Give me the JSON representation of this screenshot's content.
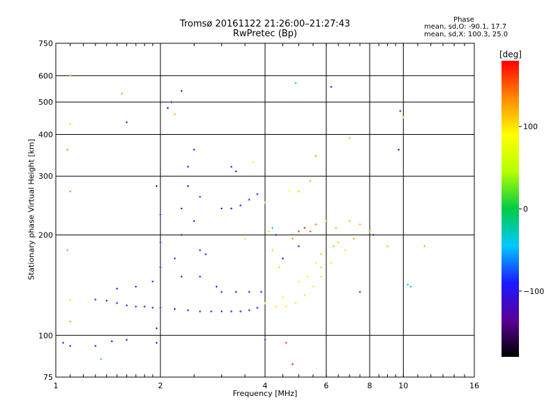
{
  "chart_data": {
    "type": "scatter",
    "title": "Tromsø 20161122 21:26:00–21:27:43",
    "subtitle": "RwPretec (Bp)",
    "xlabel": "Frequency [MHz]",
    "ylabel": "Stationary phase Virtual Height [km]",
    "x_scale": "log",
    "y_scale": "log",
    "xlim": [
      1,
      16
    ],
    "ylim": [
      75,
      750
    ],
    "x_ticks": [
      1,
      2,
      4,
      6,
      8,
      10,
      16
    ],
    "y_ticks": [
      75,
      100,
      200,
      300,
      400,
      500,
      600,
      750
    ],
    "grid": true,
    "phase_legend": {
      "title": "Phase",
      "o_line": "mean, sd,O: -90.1, 17.7",
      "x_line": "mean, sd,X: 100.3, 25.0"
    },
    "colorbar": {
      "unit": "[deg]",
      "range": [
        -180,
        180
      ],
      "tick_values": [
        100,
        0,
        -100
      ],
      "tick_labels": [
        "100",
        "0",
        "−100"
      ],
      "colormap": [
        "#000000",
        "#5a0099",
        "#1a1aff",
        "#00c8ff",
        "#00cc44",
        "#b4ff00",
        "#ffff00",
        "#ff8800",
        "#ff0000"
      ]
    },
    "series": [
      {
        "values": [
          {
            "x": 1.05,
            "y": 95,
            "phase": -100
          },
          {
            "x": 1.1,
            "y": 93,
            "phase": -100
          },
          {
            "x": 1.3,
            "y": 93,
            "phase": -100
          },
          {
            "x": 1.45,
            "y": 96,
            "phase": -100
          },
          {
            "x": 1.6,
            "y": 97,
            "phase": -100
          },
          {
            "x": 1.95,
            "y": 105,
            "phase": -100
          },
          {
            "x": 1.3,
            "y": 128,
            "phase": -95
          },
          {
            "x": 1.4,
            "y": 127,
            "phase": -95
          },
          {
            "x": 1.5,
            "y": 125,
            "phase": -95
          },
          {
            "x": 1.6,
            "y": 123,
            "phase": -95
          },
          {
            "x": 1.7,
            "y": 122,
            "phase": -95
          },
          {
            "x": 1.8,
            "y": 122,
            "phase": -95
          },
          {
            "x": 1.9,
            "y": 121,
            "phase": -95
          },
          {
            "x": 2.0,
            "y": 121,
            "phase": -95
          },
          {
            "x": 2.2,
            "y": 120,
            "phase": -95
          },
          {
            "x": 2.4,
            "y": 119,
            "phase": -95
          },
          {
            "x": 2.6,
            "y": 118,
            "phase": -95
          },
          {
            "x": 2.8,
            "y": 118,
            "phase": -95
          },
          {
            "x": 3.0,
            "y": 118,
            "phase": -95
          },
          {
            "x": 3.2,
            "y": 118,
            "phase": -95
          },
          {
            "x": 3.4,
            "y": 118,
            "phase": -95
          },
          {
            "x": 3.6,
            "y": 119,
            "phase": -95
          },
          {
            "x": 3.8,
            "y": 121,
            "phase": -95
          },
          {
            "x": 1.5,
            "y": 138,
            "phase": -95
          },
          {
            "x": 1.7,
            "y": 140,
            "phase": -95
          },
          {
            "x": 1.9,
            "y": 145,
            "phase": -95
          },
          {
            "x": 2.0,
            "y": 160,
            "phase": -95
          },
          {
            "x": 2.0,
            "y": 190,
            "phase": -95
          },
          {
            "x": 2.0,
            "y": 230,
            "phase": -95
          },
          {
            "x": 1.95,
            "y": 280,
            "phase": -95
          },
          {
            "x": 2.2,
            "y": 170,
            "phase": -95
          },
          {
            "x": 2.3,
            "y": 200,
            "phase": -95
          },
          {
            "x": 2.3,
            "y": 240,
            "phase": -95
          },
          {
            "x": 2.4,
            "y": 280,
            "phase": -95
          },
          {
            "x": 2.4,
            "y": 320,
            "phase": -95
          },
          {
            "x": 2.5,
            "y": 360,
            "phase": -95
          },
          {
            "x": 2.1,
            "y": 480,
            "phase": -95
          },
          {
            "x": 2.15,
            "y": 500,
            "phase": -95
          },
          {
            "x": 2.3,
            "y": 540,
            "phase": -95
          },
          {
            "x": 2.6,
            "y": 180,
            "phase": -95
          },
          {
            "x": 2.7,
            "y": 175,
            "phase": -95
          },
          {
            "x": 2.5,
            "y": 220,
            "phase": -95
          },
          {
            "x": 2.6,
            "y": 260,
            "phase": -95
          },
          {
            "x": 2.3,
            "y": 150,
            "phase": -95
          },
          {
            "x": 2.6,
            "y": 150,
            "phase": -95
          },
          {
            "x": 2.9,
            "y": 140,
            "phase": -95
          },
          {
            "x": 3.2,
            "y": 320,
            "phase": -95
          },
          {
            "x": 3.3,
            "y": 310,
            "phase": -95
          },
          {
            "x": 3.0,
            "y": 240,
            "phase": -95
          },
          {
            "x": 3.2,
            "y": 240,
            "phase": -95
          },
          {
            "x": 3.4,
            "y": 245,
            "phase": -95
          },
          {
            "x": 3.6,
            "y": 255,
            "phase": -95
          },
          {
            "x": 3.8,
            "y": 265,
            "phase": -95
          },
          {
            "x": 3.0,
            "y": 135,
            "phase": -95
          },
          {
            "x": 3.3,
            "y": 135,
            "phase": -95
          },
          {
            "x": 3.6,
            "y": 135,
            "phase": -95
          },
          {
            "x": 3.9,
            "y": 135,
            "phase": -95
          },
          {
            "x": 4.0,
            "y": 97,
            "phase": -95
          },
          {
            "x": 4.3,
            "y": 200,
            "phase": -100
          },
          {
            "x": 4.5,
            "y": 170,
            "phase": -100
          },
          {
            "x": 5.0,
            "y": 185,
            "phase": -100
          },
          {
            "x": 6.2,
            "y": 555,
            "phase": -100
          },
          {
            "x": 7.5,
            "y": 135,
            "phase": -100
          },
          {
            "x": 8.2,
            "y": 200,
            "phase": -100
          },
          {
            "x": 9.7,
            "y": 360,
            "phase": -100
          },
          {
            "x": 9.8,
            "y": 470,
            "phase": -100
          },
          {
            "x": 1.6,
            "y": 435,
            "phase": -100
          },
          {
            "x": 1.95,
            "y": 95,
            "phase": -100
          },
          {
            "x": 4.0,
            "y": 125,
            "phase": 100
          },
          {
            "x": 4.3,
            "y": 122,
            "phase": 100
          },
          {
            "x": 4.6,
            "y": 122,
            "phase": 100
          },
          {
            "x": 4.9,
            "y": 125,
            "phase": 100
          },
          {
            "x": 5.2,
            "y": 132,
            "phase": 100
          },
          {
            "x": 5.5,
            "y": 140,
            "phase": 100
          },
          {
            "x": 5.8,
            "y": 150,
            "phase": 100
          },
          {
            "x": 6.2,
            "y": 165,
            "phase": 100
          },
          {
            "x": 6.8,
            "y": 180,
            "phase": 100
          },
          {
            "x": 4.5,
            "y": 130,
            "phase": 90
          },
          {
            "x": 5.0,
            "y": 145,
            "phase": 90
          },
          {
            "x": 5.3,
            "y": 150,
            "phase": 60
          },
          {
            "x": 5.6,
            "y": 165,
            "phase": 60
          },
          {
            "x": 4.8,
            "y": 195,
            "phase": 130
          },
          {
            "x": 5.0,
            "y": 205,
            "phase": 160
          },
          {
            "x": 5.2,
            "y": 210,
            "phase": 170
          },
          {
            "x": 5.4,
            "y": 205,
            "phase": 160
          },
          {
            "x": 5.6,
            "y": 215,
            "phase": 140
          },
          {
            "x": 6.0,
            "y": 220,
            "phase": 120
          },
          {
            "x": 6.4,
            "y": 210,
            "phase": 120
          },
          {
            "x": 7.0,
            "y": 220,
            "phase": 120
          },
          {
            "x": 7.5,
            "y": 215,
            "phase": 120
          },
          {
            "x": 8.0,
            "y": 205,
            "phase": 130
          },
          {
            "x": 4.2,
            "y": 180,
            "phase": 110
          },
          {
            "x": 4.4,
            "y": 160,
            "phase": 110
          },
          {
            "x": 5.8,
            "y": 175,
            "phase": 110
          },
          {
            "x": 6.5,
            "y": 190,
            "phase": 110
          },
          {
            "x": 7.2,
            "y": 195,
            "phase": 120
          },
          {
            "x": 5.0,
            "y": 270,
            "phase": 110
          },
          {
            "x": 5.4,
            "y": 290,
            "phase": 120
          },
          {
            "x": 5.6,
            "y": 345,
            "phase": 130
          },
          {
            "x": 7.0,
            "y": 390,
            "phase": 120
          },
          {
            "x": 9.0,
            "y": 185,
            "phase": 120
          },
          {
            "x": 10.0,
            "y": 450,
            "phase": 80
          },
          {
            "x": 11.5,
            "y": 185,
            "phase": 120
          },
          {
            "x": 4.7,
            "y": 270,
            "phase": 90
          },
          {
            "x": 4.1,
            "y": 205,
            "phase": 100
          },
          {
            "x": 4.0,
            "y": 250,
            "phase": 110
          },
          {
            "x": 4.8,
            "y": 82,
            "phase": 160
          },
          {
            "x": 4.6,
            "y": 95,
            "phase": 160
          },
          {
            "x": 1.55,
            "y": 530,
            "phase": 130
          },
          {
            "x": 2.2,
            "y": 460,
            "phase": 120
          },
          {
            "x": 1.1,
            "y": 600,
            "phase": 30
          },
          {
            "x": 1.1,
            "y": 430,
            "phase": 60
          },
          {
            "x": 1.08,
            "y": 360,
            "phase": 20
          },
          {
            "x": 1.1,
            "y": 270,
            "phase": 20
          },
          {
            "x": 1.08,
            "y": 180,
            "phase": 20
          },
          {
            "x": 1.1,
            "y": 110,
            "phase": 30
          },
          {
            "x": 1.35,
            "y": 85,
            "phase": 10
          },
          {
            "x": 1.1,
            "y": 128,
            "phase": 60
          },
          {
            "x": 4.9,
            "y": 570,
            "phase": -20
          },
          {
            "x": 10.5,
            "y": 140,
            "phase": -30
          },
          {
            "x": 10.3,
            "y": 142,
            "phase": -30
          },
          {
            "x": 6.3,
            "y": 185,
            "phase": 30
          },
          {
            "x": 5.8,
            "y": 160,
            "phase": 40
          },
          {
            "x": 3.5,
            "y": 195,
            "phase": 50
          },
          {
            "x": 4.2,
            "y": 210,
            "phase": -40
          },
          {
            "x": 3.7,
            "y": 330,
            "phase": 80
          }
        ]
      }
    ]
  }
}
